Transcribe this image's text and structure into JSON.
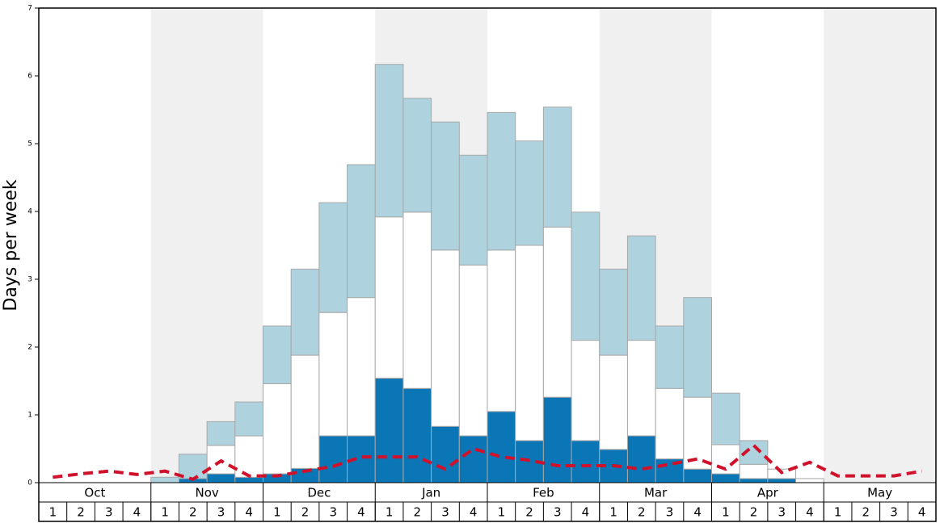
{
  "chart_data": {
    "type": "bar",
    "stacked": true,
    "y_label": "Days per week",
    "ylim": [
      0,
      7
    ],
    "yticks": [
      0,
      1,
      2,
      3,
      4,
      5,
      6,
      7
    ],
    "months": [
      "Oct",
      "Nov",
      "Dec",
      "Jan",
      "Feb",
      "Mar",
      "Apr",
      "May"
    ],
    "categories": [
      "1",
      "2",
      "3",
      "4",
      "1",
      "2",
      "3",
      "4",
      "1",
      "2",
      "3",
      "4",
      "1",
      "2",
      "3",
      "4",
      "1",
      "2",
      "3",
      "4",
      "1",
      "2",
      "3",
      "4",
      "1",
      "2",
      "3",
      "4",
      "1",
      "2",
      "3",
      "4"
    ],
    "series": [
      {
        "color": "#0a76b6",
        "values": [
          0,
          0,
          0,
          0,
          0,
          0.06,
          0.13,
          0.08,
          0.13,
          0.21,
          0.69,
          0.69,
          1.54,
          1.39,
          0.83,
          0.69,
          1.05,
          0.62,
          1.26,
          0.62,
          0.49,
          0.69,
          0.35,
          0.2,
          0.13,
          0.06,
          0.06,
          0,
          0,
          0,
          0,
          0
        ]
      },
      {
        "color": "#ffffff",
        "values": [
          0,
          0,
          0,
          0,
          0,
          0,
          0.42,
          0.61,
          1.33,
          1.67,
          1.82,
          2.04,
          2.38,
          2.6,
          2.6,
          2.52,
          2.38,
          2.88,
          2.51,
          1.48,
          1.39,
          1.41,
          1.04,
          1.06,
          0.43,
          0.21,
          0.14,
          0.06,
          0,
          0,
          0,
          0
        ]
      },
      {
        "color": "#aed3df",
        "values": [
          0,
          0,
          0,
          0,
          0.08,
          0.36,
          0.35,
          0.5,
          0.85,
          1.27,
          1.62,
          1.96,
          2.25,
          1.68,
          1.89,
          1.62,
          2.03,
          1.54,
          1.77,
          1.89,
          1.27,
          1.54,
          0.92,
          1.47,
          0.76,
          0.35,
          0,
          0,
          0,
          0,
          0,
          0
        ]
      }
    ],
    "line": {
      "color": "#d0112b",
      "dashed": true,
      "values": [
        0.08,
        0.13,
        0.17,
        0.12,
        0.17,
        0.05,
        0.32,
        0.1,
        0.1,
        0.17,
        0.24,
        0.38,
        0.38,
        0.38,
        0.2,
        0.5,
        0.38,
        0.33,
        0.25,
        0.25,
        0.25,
        0.2,
        0.27,
        0.35,
        0.2,
        0.55,
        0.15,
        0.3,
        0.1,
        0.1,
        0.1,
        0.17
      ]
    }
  }
}
